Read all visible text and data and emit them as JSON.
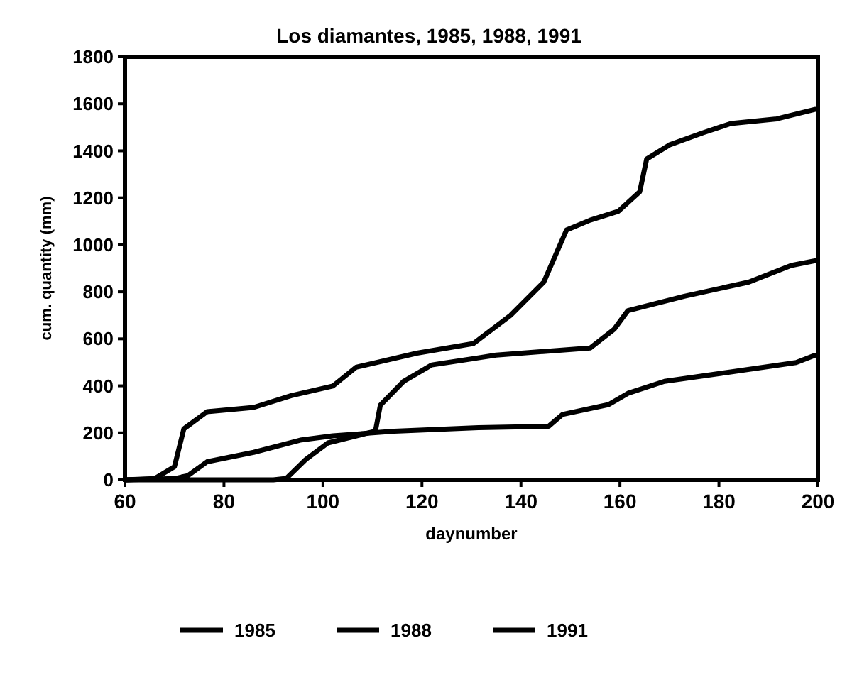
{
  "chart_data": {
    "type": "line",
    "title": "Los diamantes, 1985, 1988, 1991",
    "xlabel": "daynumber",
    "ylabel": "cum. quantity (mm)",
    "xlim": [
      60,
      200
    ],
    "xticks": [
      60,
      80,
      100,
      120,
      140,
      160,
      180,
      200
    ],
    "ylim": [
      0,
      1800
    ],
    "yticks": [
      0,
      200,
      400,
      600,
      800,
      1000,
      1200,
      1400,
      1600,
      1800
    ],
    "grid": false,
    "legend": "bottom",
    "marker": "none",
    "line_style": "solid",
    "series": [
      {
        "name": "1985",
        "color": "#000000",
        "x": [
          60,
          66,
          70,
          71.9,
          76.6,
          86,
          93.6,
          102,
          106.7,
          119,
          130.4,
          137.9,
          144.6,
          149.2,
          154,
          159.7,
          164,
          165.4,
          170,
          176.7,
          182.4,
          191.7,
          199.4
        ],
        "values": [
          0,
          5,
          56,
          217,
          290,
          308,
          358,
          399,
          479,
          539,
          580,
          700,
          841,
          1063,
          1105,
          1143,
          1226,
          1365,
          1425,
          1476,
          1516,
          1536,
          1576
        ]
      },
      {
        "name": "1988",
        "color": "#000000",
        "x": [
          60,
          90,
          92.6,
          96.5,
          101,
          110.6,
          111.6,
          116.3,
          122,
          131.4,
          135,
          154,
          158.8,
          161.6,
          173,
          186,
          194.6,
          199.4
        ],
        "values": [
          0,
          0,
          6,
          86,
          157,
          207,
          318,
          419,
          489,
          519,
          531,
          561,
          640,
          720,
          781,
          841,
          912,
          932
        ]
      },
      {
        "name": "1991",
        "color": "#000000",
        "x": [
          60,
          70,
          72.7,
          76.6,
          86,
          95.4,
          102,
          114.4,
          131.4,
          145.6,
          148.4,
          157.7,
          161.6,
          169,
          182.4,
          195.6,
          199.4
        ],
        "values": [
          0,
          5,
          18,
          77,
          117,
          169,
          187,
          207,
          222,
          228,
          278,
          320,
          368,
          419,
          459,
          499,
          530
        ]
      }
    ]
  }
}
